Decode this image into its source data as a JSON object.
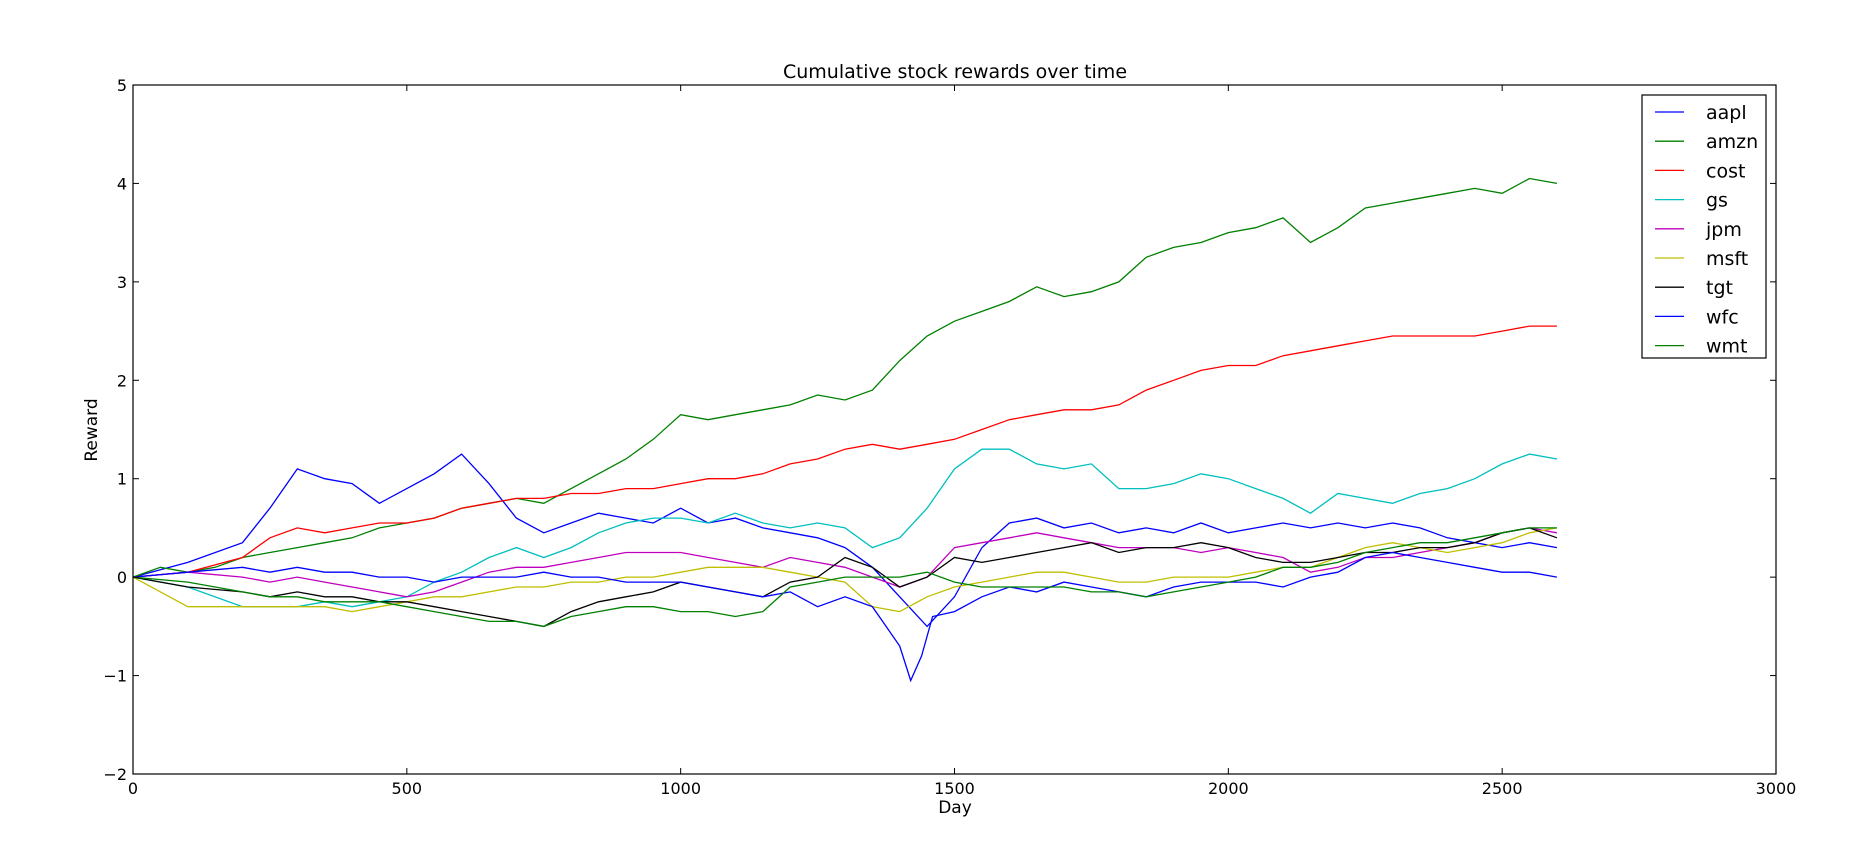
{
  "chart_data": {
    "type": "line",
    "title": "Cumulative stock rewards over time",
    "xlabel": "Day",
    "ylabel": "Reward",
    "xlim": [
      0,
      3000
    ],
    "ylim": [
      -2,
      5
    ],
    "xticks": [
      0,
      500,
      1000,
      1500,
      2000,
      2500,
      3000
    ],
    "yticks": [
      -2,
      -1,
      0,
      1,
      2,
      3,
      4,
      5
    ],
    "grid": false,
    "legend_position": "top-right",
    "series": [
      {
        "name": "aapl",
        "color": "#0000ff",
        "x": [
          0,
          100,
          200,
          250,
          300,
          350,
          400,
          450,
          500,
          550,
          600,
          650,
          700,
          750,
          800,
          850,
          900,
          950,
          1000,
          1050,
          1100,
          1150,
          1200,
          1250,
          1300,
          1350,
          1400,
          1450,
          1500,
          1550,
          1600,
          1650,
          1700,
          1750,
          1800,
          1850,
          1900,
          1950,
          2000,
          2050,
          2100,
          2150,
          2200,
          2250,
          2300,
          2350,
          2400,
          2450,
          2500,
          2550,
          2600
        ],
        "values": [
          0,
          0.15,
          0.35,
          0.7,
          1.1,
          1.0,
          0.95,
          0.75,
          0.9,
          1.05,
          1.25,
          0.95,
          0.6,
          0.45,
          0.55,
          0.65,
          0.6,
          0.55,
          0.7,
          0.55,
          0.6,
          0.5,
          0.45,
          0.4,
          0.3,
          0.1,
          -0.2,
          -0.5,
          -0.2,
          0.3,
          0.55,
          0.6,
          0.5,
          0.55,
          0.45,
          0.5,
          0.45,
          0.55,
          0.45,
          0.5,
          0.55,
          0.5,
          0.55,
          0.5,
          0.55,
          0.5,
          0.4,
          0.35,
          0.3,
          0.35,
          0.3
        ]
      },
      {
        "name": "amzn",
        "color": "#008000",
        "x": [
          0,
          50,
          100,
          150,
          200,
          250,
          300,
          350,
          400,
          450,
          500,
          550,
          600,
          650,
          700,
          750,
          800,
          850,
          900,
          950,
          1000,
          1050,
          1100,
          1150,
          1200,
          1250,
          1300,
          1350,
          1400,
          1450,
          1500,
          1550,
          1600,
          1650,
          1700,
          1750,
          1800,
          1850,
          1900,
          1950,
          2000,
          2050,
          2100,
          2150,
          2200,
          2250,
          2300,
          2350,
          2400,
          2450,
          2500,
          2550,
          2600
        ],
        "values": [
          0,
          0.1,
          0.05,
          0.1,
          0.2,
          0.25,
          0.3,
          0.35,
          0.4,
          0.5,
          0.55,
          0.6,
          0.7,
          0.75,
          0.8,
          0.75,
          0.9,
          1.05,
          1.2,
          1.4,
          1.65,
          1.6,
          1.65,
          1.7,
          1.75,
          1.85,
          1.8,
          1.9,
          2.2,
          2.45,
          2.6,
          2.7,
          2.8,
          2.95,
          2.85,
          2.9,
          3.0,
          3.25,
          3.35,
          3.4,
          3.5,
          3.55,
          3.65,
          3.4,
          3.55,
          3.75,
          3.8,
          3.85,
          3.9,
          3.95,
          3.9,
          4.05,
          4.0
        ]
      },
      {
        "name": "cost",
        "color": "#ff0000",
        "x": [
          0,
          100,
          200,
          250,
          300,
          350,
          400,
          450,
          500,
          550,
          600,
          650,
          700,
          750,
          800,
          850,
          900,
          950,
          1000,
          1050,
          1100,
          1150,
          1200,
          1250,
          1300,
          1350,
          1400,
          1450,
          1500,
          1550,
          1600,
          1650,
          1700,
          1750,
          1800,
          1850,
          1900,
          1950,
          2000,
          2050,
          2100,
          2150,
          2200,
          2250,
          2300,
          2350,
          2400,
          2450,
          2500,
          2550,
          2600
        ],
        "values": [
          0,
          0.05,
          0.2,
          0.4,
          0.5,
          0.45,
          0.5,
          0.55,
          0.55,
          0.6,
          0.7,
          0.75,
          0.8,
          0.8,
          0.85,
          0.85,
          0.9,
          0.9,
          0.95,
          1.0,
          1.0,
          1.05,
          1.15,
          1.2,
          1.3,
          1.35,
          1.3,
          1.35,
          1.4,
          1.5,
          1.6,
          1.65,
          1.7,
          1.7,
          1.75,
          1.9,
          2.0,
          2.1,
          2.15,
          2.15,
          2.25,
          2.3,
          2.35,
          2.4,
          2.45,
          2.45,
          2.45,
          2.45,
          2.5,
          2.55,
          2.55
        ]
      },
      {
        "name": "gs",
        "color": "#00bfbf",
        "x": [
          0,
          100,
          200,
          250,
          300,
          350,
          400,
          450,
          500,
          550,
          600,
          650,
          700,
          750,
          800,
          850,
          900,
          950,
          1000,
          1050,
          1100,
          1150,
          1200,
          1250,
          1300,
          1350,
          1400,
          1450,
          1500,
          1550,
          1600,
          1650,
          1700,
          1750,
          1800,
          1850,
          1900,
          1950,
          2000,
          2050,
          2100,
          2150,
          2200,
          2250,
          2300,
          2350,
          2400,
          2450,
          2500,
          2550,
          2600
        ],
        "values": [
          0,
          -0.1,
          -0.3,
          -0.3,
          -0.3,
          -0.25,
          -0.3,
          -0.25,
          -0.2,
          -0.05,
          0.05,
          0.2,
          0.3,
          0.2,
          0.3,
          0.45,
          0.55,
          0.6,
          0.6,
          0.55,
          0.65,
          0.55,
          0.5,
          0.55,
          0.5,
          0.3,
          0.4,
          0.7,
          1.1,
          1.3,
          1.3,
          1.15,
          1.1,
          1.15,
          0.9,
          0.9,
          0.95,
          1.05,
          1.0,
          0.9,
          0.8,
          0.65,
          0.85,
          0.8,
          0.75,
          0.85,
          0.9,
          1.0,
          1.15,
          1.25,
          1.2
        ]
      },
      {
        "name": "jpm",
        "color": "#bf00bf",
        "x": [
          0,
          100,
          200,
          250,
          300,
          350,
          400,
          450,
          500,
          550,
          600,
          650,
          700,
          750,
          800,
          850,
          900,
          950,
          1000,
          1050,
          1100,
          1150,
          1200,
          1250,
          1300,
          1350,
          1400,
          1450,
          1500,
          1550,
          1600,
          1650,
          1700,
          1750,
          1800,
          1850,
          1900,
          1950,
          2000,
          2050,
          2100,
          2150,
          2200,
          2250,
          2300,
          2350,
          2400,
          2450,
          2500,
          2550,
          2600
        ],
        "values": [
          0,
          0.05,
          0.0,
          -0.05,
          0.0,
          -0.05,
          -0.1,
          -0.15,
          -0.2,
          -0.15,
          -0.05,
          0.05,
          0.1,
          0.1,
          0.15,
          0.2,
          0.25,
          0.25,
          0.25,
          0.2,
          0.15,
          0.1,
          0.2,
          0.15,
          0.1,
          0.0,
          -0.1,
          0.0,
          0.3,
          0.35,
          0.4,
          0.45,
          0.4,
          0.35,
          0.3,
          0.3,
          0.3,
          0.25,
          0.3,
          0.25,
          0.2,
          0.05,
          0.1,
          0.2,
          0.2,
          0.25,
          0.3,
          0.35,
          0.45,
          0.5,
          0.45
        ]
      },
      {
        "name": "msft",
        "color": "#bfbf00",
        "x": [
          0,
          100,
          200,
          250,
          300,
          350,
          400,
          450,
          500,
          550,
          600,
          650,
          700,
          750,
          800,
          850,
          900,
          950,
          1000,
          1050,
          1100,
          1150,
          1200,
          1250,
          1300,
          1350,
          1400,
          1450,
          1500,
          1550,
          1600,
          1650,
          1700,
          1750,
          1800,
          1850,
          1900,
          1950,
          2000,
          2050,
          2100,
          2150,
          2200,
          2250,
          2300,
          2350,
          2400,
          2450,
          2500,
          2550,
          2600
        ],
        "values": [
          0,
          -0.3,
          -0.3,
          -0.3,
          -0.3,
          -0.3,
          -0.35,
          -0.3,
          -0.25,
          -0.2,
          -0.2,
          -0.15,
          -0.1,
          -0.1,
          -0.05,
          -0.05,
          0.0,
          0.0,
          0.05,
          0.1,
          0.1,
          0.1,
          0.05,
          0.0,
          -0.05,
          -0.3,
          -0.35,
          -0.2,
          -0.1,
          -0.05,
          0.0,
          0.05,
          0.05,
          0.0,
          -0.05,
          -0.05,
          0.0,
          0.0,
          0.0,
          0.05,
          0.1,
          0.1,
          0.2,
          0.3,
          0.35,
          0.3,
          0.25,
          0.3,
          0.35,
          0.45,
          0.5
        ]
      },
      {
        "name": "tgt",
        "color": "#000000",
        "x": [
          0,
          100,
          200,
          250,
          300,
          350,
          400,
          450,
          500,
          550,
          600,
          650,
          700,
          750,
          800,
          850,
          900,
          950,
          1000,
          1050,
          1100,
          1150,
          1200,
          1250,
          1300,
          1350,
          1400,
          1450,
          1500,
          1550,
          1600,
          1650,
          1700,
          1750,
          1800,
          1850,
          1900,
          1950,
          2000,
          2050,
          2100,
          2150,
          2200,
          2250,
          2300,
          2350,
          2400,
          2450,
          2500,
          2550,
          2600
        ],
        "values": [
          0,
          -0.1,
          -0.15,
          -0.2,
          -0.15,
          -0.2,
          -0.2,
          -0.25,
          -0.25,
          -0.3,
          -0.35,
          -0.4,
          -0.45,
          -0.5,
          -0.35,
          -0.25,
          -0.2,
          -0.15,
          -0.05,
          -0.1,
          -0.15,
          -0.2,
          -0.05,
          0.0,
          0.2,
          0.1,
          -0.1,
          0.0,
          0.2,
          0.15,
          0.2,
          0.25,
          0.3,
          0.35,
          0.25,
          0.3,
          0.3,
          0.35,
          0.3,
          0.2,
          0.15,
          0.15,
          0.2,
          0.25,
          0.25,
          0.3,
          0.3,
          0.35,
          0.45,
          0.5,
          0.4
        ]
      },
      {
        "name": "wfc",
        "color": "#0000ff",
        "x": [
          0,
          100,
          200,
          250,
          300,
          350,
          400,
          450,
          500,
          550,
          600,
          650,
          700,
          750,
          800,
          850,
          900,
          950,
          1000,
          1050,
          1100,
          1150,
          1200,
          1250,
          1300,
          1350,
          1400,
          1420,
          1440,
          1460,
          1500,
          1550,
          1600,
          1650,
          1700,
          1750,
          1800,
          1850,
          1900,
          1950,
          2000,
          2050,
          2100,
          2150,
          2200,
          2250,
          2300,
          2350,
          2400,
          2450,
          2500,
          2550,
          2600
        ],
        "values": [
          0,
          0.05,
          0.1,
          0.05,
          0.1,
          0.05,
          0.05,
          0.0,
          0.0,
          -0.05,
          0.0,
          0.0,
          0.0,
          0.05,
          0.0,
          0.0,
          -0.05,
          -0.05,
          -0.05,
          -0.1,
          -0.15,
          -0.2,
          -0.15,
          -0.3,
          -0.2,
          -0.3,
          -0.7,
          -1.05,
          -0.8,
          -0.4,
          -0.35,
          -0.2,
          -0.1,
          -0.15,
          -0.05,
          -0.1,
          -0.15,
          -0.2,
          -0.1,
          -0.05,
          -0.05,
          -0.05,
          -0.1,
          0.0,
          0.05,
          0.2,
          0.25,
          0.2,
          0.15,
          0.1,
          0.05,
          0.05,
          0.0
        ]
      },
      {
        "name": "wmt",
        "color": "#008000",
        "x": [
          0,
          100,
          200,
          250,
          300,
          350,
          400,
          450,
          500,
          550,
          600,
          650,
          700,
          750,
          800,
          850,
          900,
          950,
          1000,
          1050,
          1100,
          1150,
          1200,
          1250,
          1300,
          1350,
          1400,
          1450,
          1500,
          1550,
          1600,
          1650,
          1700,
          1750,
          1800,
          1850,
          1900,
          1950,
          2000,
          2050,
          2100,
          2150,
          2200,
          2250,
          2300,
          2350,
          2400,
          2450,
          2500,
          2550,
          2600
        ],
        "values": [
          0,
          -0.05,
          -0.15,
          -0.2,
          -0.2,
          -0.25,
          -0.25,
          -0.25,
          -0.3,
          -0.35,
          -0.4,
          -0.45,
          -0.45,
          -0.5,
          -0.4,
          -0.35,
          -0.3,
          -0.3,
          -0.35,
          -0.35,
          -0.4,
          -0.35,
          -0.1,
          -0.05,
          0.0,
          0.0,
          0.0,
          0.05,
          -0.05,
          -0.1,
          -0.1,
          -0.1,
          -0.1,
          -0.15,
          -0.15,
          -0.2,
          -0.15,
          -0.1,
          -0.05,
          0.0,
          0.1,
          0.1,
          0.15,
          0.25,
          0.3,
          0.35,
          0.35,
          0.4,
          0.45,
          0.5,
          0.5
        ]
      }
    ]
  }
}
